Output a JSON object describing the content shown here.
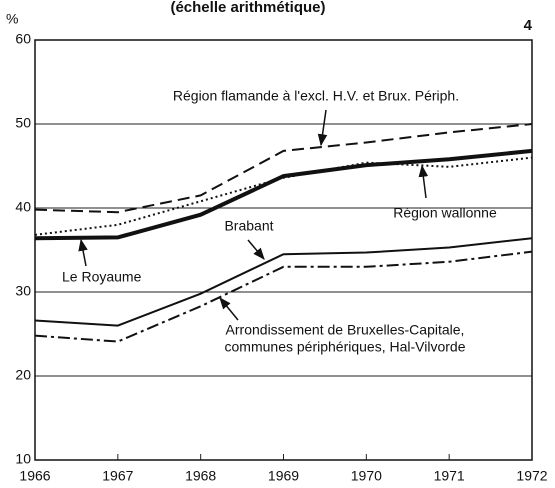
{
  "chart_data": {
    "type": "line",
    "title": "(échelle arithmétique)",
    "page_number": "4",
    "y_unit": "%",
    "x": [
      1966,
      1967,
      1968,
      1969,
      1970,
      1971,
      1972
    ],
    "xlim": [
      1966,
      1972
    ],
    "xticks": [
      1966,
      1967,
      1968,
      1969,
      1970,
      1971,
      1972
    ],
    "ylim": [
      10,
      60
    ],
    "yticks": [
      10,
      20,
      30,
      40,
      50,
      60
    ],
    "grid": true,
    "series": [
      {
        "name": [
          "Région flamande à l'excl. H.V. et Brux. Périph."
        ],
        "color": "#111",
        "style": "dashed",
        "width": 2,
        "values": [
          39.8,
          39.5,
          41.5,
          46.8,
          47.8,
          49.0,
          50.0
        ]
      },
      {
        "name": [
          "Région wallonne"
        ],
        "color": "#111",
        "style": "dotted",
        "width": 2,
        "values": [
          36.8,
          38.0,
          40.8,
          43.6,
          45.4,
          44.9,
          46.0
        ]
      },
      {
        "name": [
          "Le Royaume"
        ],
        "color": "#111",
        "style": "solid",
        "width": 4,
        "values": [
          36.4,
          36.5,
          39.2,
          43.8,
          45.1,
          45.8,
          46.8
        ]
      },
      {
        "name": [
          "Brabant"
        ],
        "color": "#111",
        "style": "solid",
        "width": 2,
        "values": [
          26.6,
          26.0,
          29.8,
          34.5,
          34.7,
          35.3,
          36.4
        ]
      },
      {
        "name": [
          "Arrondissement de Bruxelles-Capitale,",
          "communes périphériques, Hal-Vilvorde"
        ],
        "color": "#111",
        "style": "dashdot",
        "width": 2,
        "values": [
          24.8,
          24.1,
          28.3,
          33.0,
          33.0,
          33.6,
          34.8
        ]
      }
    ]
  }
}
